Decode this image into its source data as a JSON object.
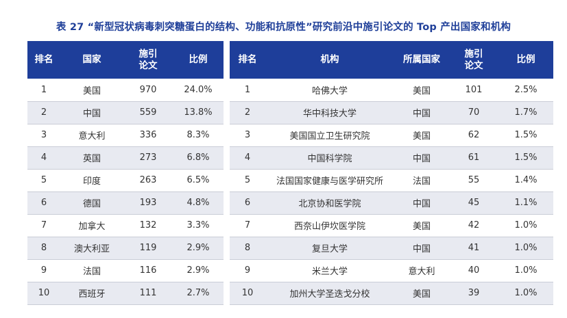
{
  "title": "表 27 “新型冠状病毒刺突糖蛋白的结构、功能和抗原性”研究前沿中施引论文的 Top 产出国家和机构",
  "left_table": {
    "headers": [
      "排名",
      "国家",
      "施引\n论文",
      "比例"
    ],
    "rows": [
      [
        "1",
        "美国",
        "970",
        "24.0%"
      ],
      [
        "2",
        "中国",
        "559",
        "13.8%"
      ],
      [
        "3",
        "意大利",
        "336",
        "8.3%"
      ],
      [
        "4",
        "英国",
        "273",
        "6.8%"
      ],
      [
        "5",
        "印度",
        "263",
        "6.5%"
      ],
      [
        "6",
        "德国",
        "193",
        "4.8%"
      ],
      [
        "7",
        "加拿大",
        "132",
        "3.3%"
      ],
      [
        "8",
        "澳大利亚",
        "119",
        "2.9%"
      ],
      [
        "9",
        "法国",
        "116",
        "2.9%"
      ],
      [
        "10",
        "西班牙",
        "111",
        "2.7%"
      ]
    ]
  },
  "right_table": {
    "headers": [
      "排名",
      "机构",
      "所属国家",
      "施引\n论文",
      "比例"
    ],
    "rows": [
      [
        "1",
        "哈佛大学",
        "美国",
        "101",
        "2.5%"
      ],
      [
        "2",
        "华中科技大学",
        "中国",
        "70",
        "1.7%"
      ],
      [
        "3",
        "美国国立卫生研究院",
        "美国",
        "62",
        "1.5%"
      ],
      [
        "4",
        "中国科学院",
        "中国",
        "61",
        "1.5%"
      ],
      [
        "5",
        "法国国家健康与医学研究所",
        "法国",
        "55",
        "1.4%"
      ],
      [
        "6",
        "北京协和医学院",
        "中国",
        "45",
        "1.1%"
      ],
      [
        "7",
        "西奈山伊坎医学院",
        "美国",
        "42",
        "1.0%"
      ],
      [
        "8",
        "复旦大学",
        "中国",
        "41",
        "1.0%"
      ],
      [
        "9",
        "米兰大学",
        "意大利",
        "40",
        "1.0%"
      ],
      [
        "10",
        "加州大学圣迭戈分校",
        "美国",
        "39",
        "1.0%"
      ]
    ]
  }
}
